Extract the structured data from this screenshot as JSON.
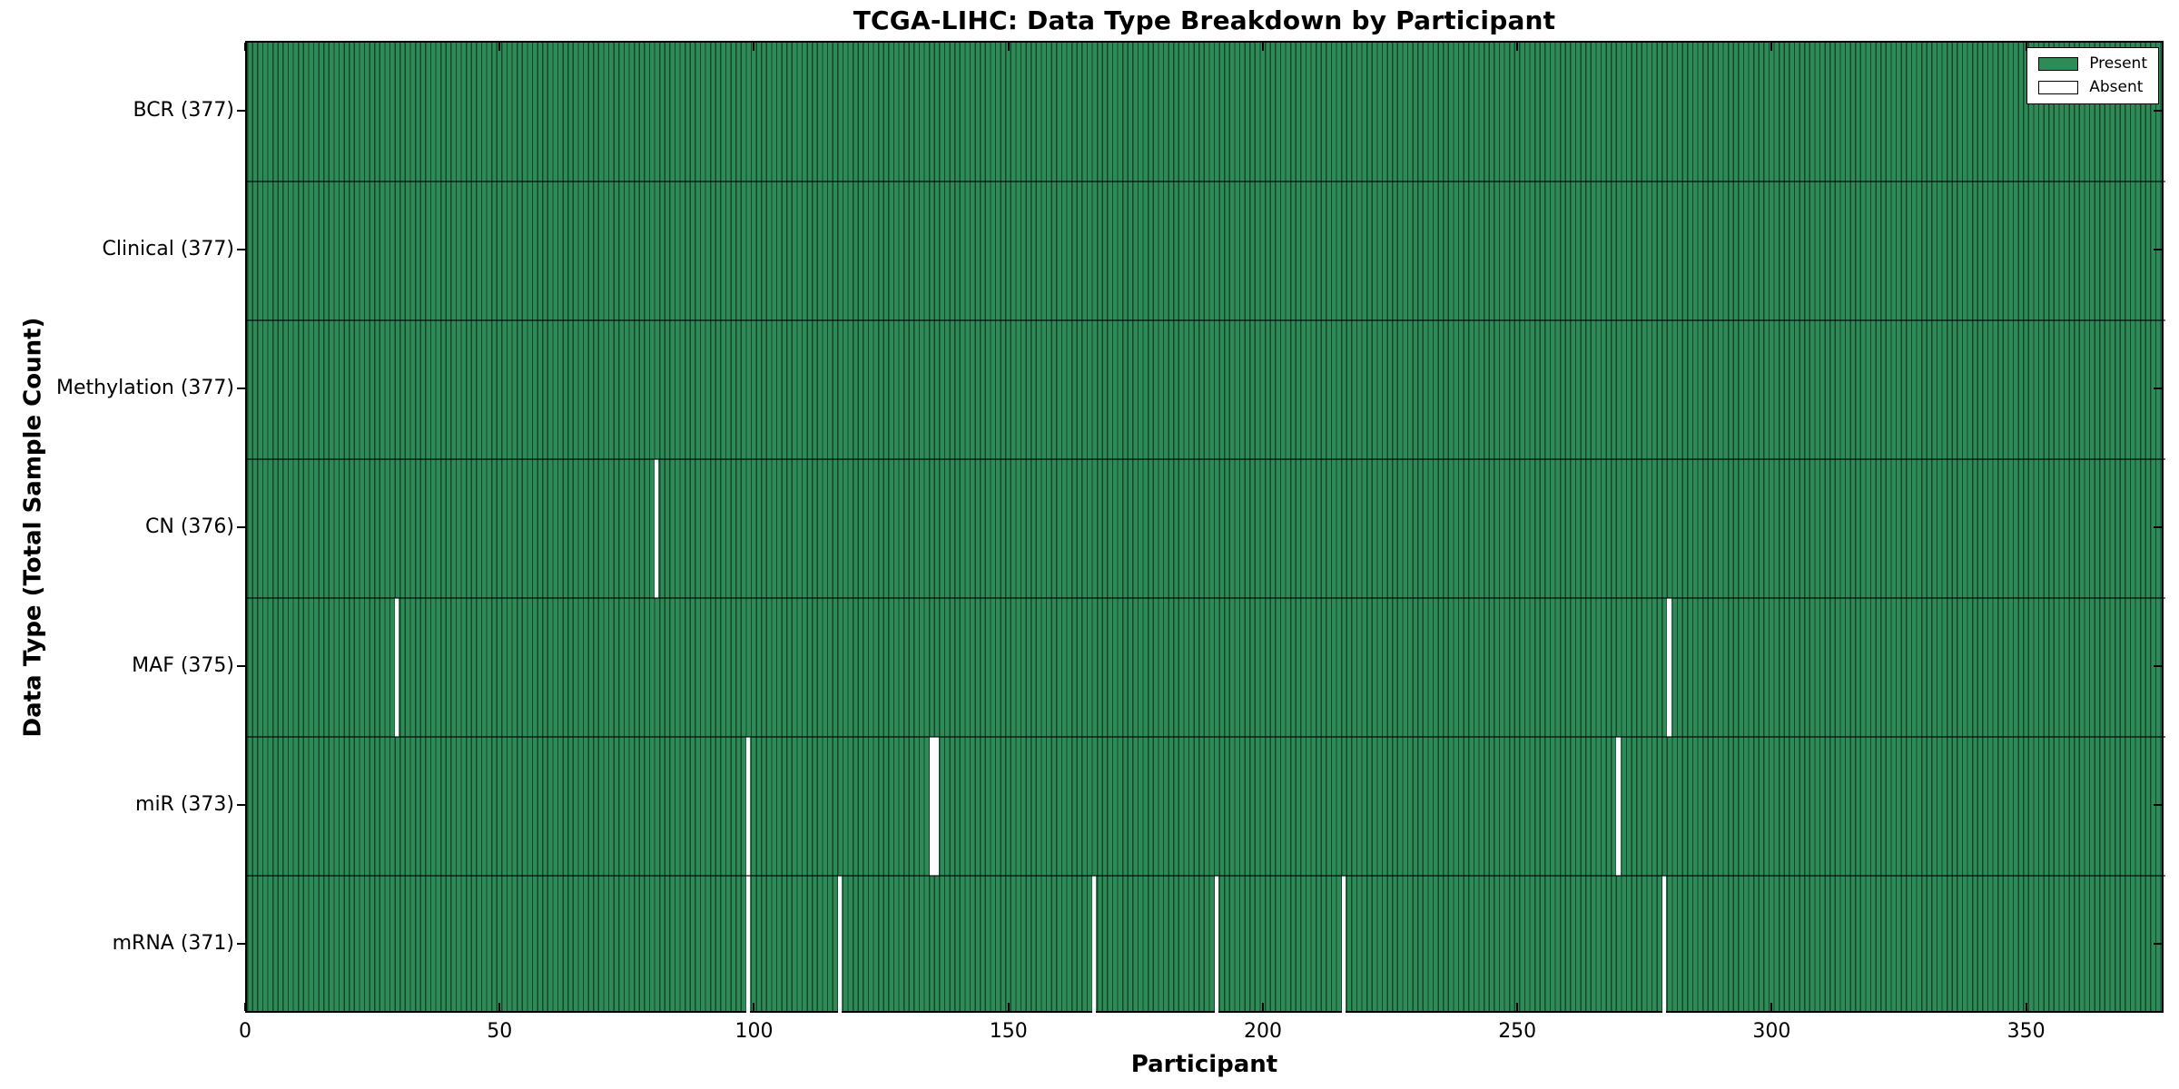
{
  "chart_data": {
    "type": "heatmap",
    "title": "TCGA-LIHC: Data Type Breakdown by Participant",
    "xlabel": "Participant",
    "ylabel": "Data Type (Total Sample Count)",
    "n_participants": 377,
    "xlim": [
      0,
      377
    ],
    "x_ticks": [
      0,
      50,
      100,
      150,
      200,
      250,
      300,
      350
    ],
    "rows": [
      {
        "label": "BCR (377)",
        "data_type": "BCR",
        "total_samples": 377,
        "absent_participants": []
      },
      {
        "label": "Clinical (377)",
        "data_type": "Clinical",
        "total_samples": 377,
        "absent_participants": []
      },
      {
        "label": "Methylation (377)",
        "data_type": "Methylation",
        "total_samples": 377,
        "absent_participants": []
      },
      {
        "label": "CN (376)",
        "data_type": "CN",
        "total_samples": 376,
        "absent_participants": [
          80
        ]
      },
      {
        "label": "MAF (375)",
        "data_type": "MAF",
        "total_samples": 375,
        "absent_participants": [
          29,
          279
        ]
      },
      {
        "label": "miR (373)",
        "data_type": "miR",
        "total_samples": 373,
        "absent_participants": [
          98,
          134,
          135,
          269
        ]
      },
      {
        "label": "mRNA (371)",
        "data_type": "mRNA",
        "total_samples": 371,
        "absent_participants": [
          98,
          116,
          166,
          190,
          215,
          278
        ]
      }
    ],
    "legend": [
      {
        "label": "Present",
        "color": "#2e8b57"
      },
      {
        "label": "Absent",
        "color": "#ffffff"
      }
    ],
    "legend_position": "upper right",
    "grid": false
  },
  "colors": {
    "present": "#2e8b57",
    "absent": "#ffffff",
    "bar_edge": "rgba(0,0,0,0.5)",
    "row_separator": "rgba(0,0,0,0.55)",
    "axis": "#000000",
    "background": "#ffffff"
  }
}
